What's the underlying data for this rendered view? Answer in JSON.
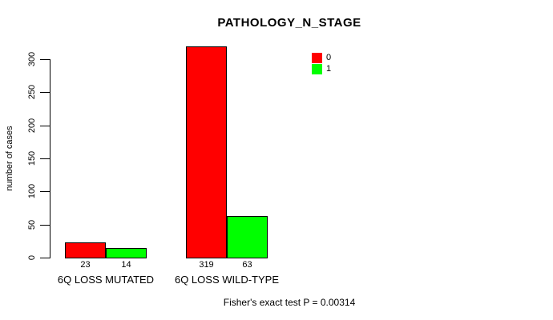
{
  "chart": {
    "title": "PATHOLOGY_N_STAGE",
    "ylabel": "number of cases",
    "footnote": "Fisher's exact test P = 0.00314"
  },
  "chart_data": {
    "type": "bar",
    "title": "PATHOLOGY_N_STAGE",
    "categories": [
      "6Q LOSS MUTATED",
      "6Q LOSS WILD-TYPE"
    ],
    "series": [
      {
        "name": "0",
        "color": "#ff0000",
        "values": [
          23,
          319
        ]
      },
      {
        "name": "1",
        "color": "#00ff00",
        "values": [
          14,
          63
        ]
      }
    ],
    "bar_value_labels": [
      [
        "23",
        "319"
      ],
      [
        "14",
        "63"
      ]
    ],
    "xlabel": "",
    "ylabel": "number of cases",
    "ylim": [
      0,
      300
    ],
    "yticks": [
      0,
      50,
      100,
      150,
      200,
      250,
      300
    ],
    "grid": false,
    "legend_position": "top-right",
    "legend": [
      {
        "label": "0",
        "color": "#ff0000"
      },
      {
        "label": "1",
        "color": "#00ff00"
      }
    ],
    "annotation": "Fisher's exact test P = 0.00314"
  }
}
